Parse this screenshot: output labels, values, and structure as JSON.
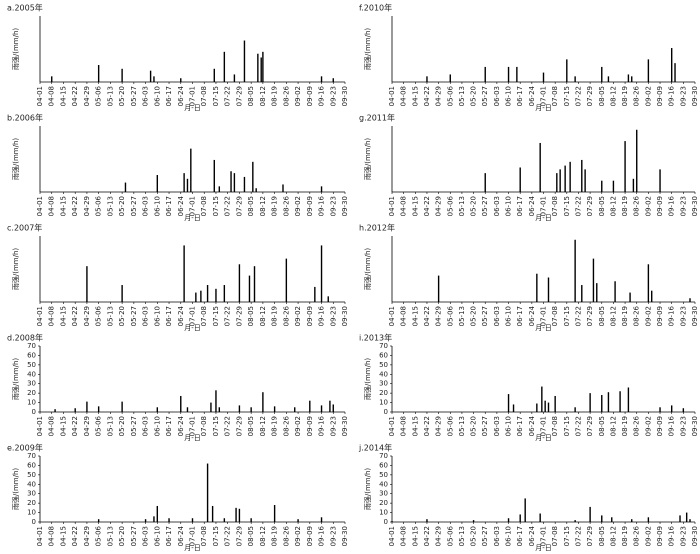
{
  "chart_data": [
    {
      "type": "bar",
      "title": "a.2005年",
      "xlabel": "月-日",
      "ylabel": "雨强/(mm/h)",
      "color": "#000000",
      "ylim": [
        0,
        35
      ],
      "xticks": [
        "04-01",
        "04-08",
        "04-15",
        "04-22",
        "04-29",
        "05-06",
        "05-13",
        "05-20",
        "05-27",
        "06-03",
        "06-10",
        "06-17",
        "06-24",
        "07-01",
        "07-08",
        "07-15",
        "07-22",
        "07-29",
        "08-05",
        "08-12",
        "08-19",
        "08-26",
        "09-02",
        "09-09",
        "09-16",
        "09-23",
        "09-30"
      ],
      "x": [
        "04-08",
        "05-06",
        "05-20",
        "06-06",
        "06-08",
        "06-24",
        "07-14",
        "07-20",
        "07-26",
        "08-01",
        "08-09",
        "08-11",
        "08-12",
        "09-16",
        "09-23"
      ],
      "values": [
        3,
        9,
        7,
        6,
        3,
        2,
        7,
        16,
        4,
        22,
        15,
        13,
        16,
        3,
        2
      ]
    },
    {
      "type": "bar",
      "title": "b.2006年",
      "xlabel": "月-日",
      "ylabel": "雨强/(mm/h)",
      "color": "#000000",
      "ylim": [
        0,
        35
      ],
      "xticks": [
        "04-01",
        "04-08",
        "04-15",
        "04-22",
        "04-29",
        "05-06",
        "05-13",
        "05-20",
        "05-27",
        "06-03",
        "06-10",
        "06-17",
        "06-24",
        "07-01",
        "07-08",
        "07-15",
        "07-22",
        "07-29",
        "08-05",
        "08-12",
        "08-19",
        "08-26",
        "09-02",
        "09-09",
        "09-16",
        "09-23",
        "09-30"
      ],
      "x": [
        "05-22",
        "06-10",
        "06-26",
        "06-28",
        "06-30",
        "07-14",
        "07-17",
        "07-24",
        "07-26",
        "08-01",
        "08-06",
        "08-08",
        "08-24",
        "09-16"
      ],
      "values": [
        5,
        9,
        10,
        7,
        23,
        17,
        3,
        11,
        10,
        8,
        16,
        2,
        4,
        3
      ]
    },
    {
      "type": "bar",
      "title": "c.2007年",
      "xlabel": "月-日",
      "ylabel": "雨强/(mm/h)",
      "color": "#000000",
      "ylim": [
        0,
        35
      ],
      "xticks": [
        "04-01",
        "04-08",
        "04-15",
        "04-22",
        "04-29",
        "05-06",
        "05-13",
        "05-20",
        "05-27",
        "06-03",
        "06-10",
        "06-17",
        "06-24",
        "07-01",
        "07-08",
        "07-15",
        "07-22",
        "07-29",
        "08-05",
        "08-12",
        "08-19",
        "08-26",
        "09-02",
        "09-09",
        "09-16",
        "09-23",
        "09-30"
      ],
      "x": [
        "04-29",
        "05-20",
        "06-26",
        "07-03",
        "07-06",
        "07-10",
        "07-15",
        "07-20",
        "07-29",
        "08-04",
        "08-07",
        "08-26",
        "09-12",
        "09-16",
        "09-20"
      ],
      "values": [
        19,
        9,
        30,
        5,
        6,
        9,
        7,
        9,
        20,
        14,
        19,
        23,
        8,
        30,
        3
      ]
    },
    {
      "type": "bar",
      "title": "d.2008年",
      "xlabel": "月-日",
      "ylabel": "雨强/(mm/h)",
      "color": "#000000",
      "ylim": [
        0,
        70
      ],
      "yticks": [
        0,
        10,
        20,
        30,
        40,
        50,
        60,
        70
      ],
      "xticks": [
        "04-01",
        "04-08",
        "04-15",
        "04-22",
        "04-29",
        "05-06",
        "05-13",
        "05-20",
        "05-27",
        "06-03",
        "06-10",
        "06-17",
        "06-24",
        "07-01",
        "07-08",
        "07-15",
        "07-22",
        "07-29",
        "08-05",
        "08-12",
        "08-19",
        "08-26",
        "09-02",
        "09-09",
        "09-16",
        "09-23",
        "09-30"
      ],
      "x": [
        "04-10",
        "04-22",
        "04-29",
        "05-06",
        "05-20",
        "06-10",
        "06-24",
        "06-28",
        "07-12",
        "07-15",
        "07-17",
        "07-29",
        "08-05",
        "08-12",
        "08-19",
        "08-31",
        "09-09",
        "09-16",
        "09-21",
        "09-23"
      ],
      "values": [
        3,
        4,
        11,
        6,
        11,
        5,
        17,
        5,
        10,
        23,
        5,
        7,
        5,
        21,
        6,
        5,
        12,
        7,
        12,
        8
      ]
    },
    {
      "type": "bar",
      "title": "e.2009年",
      "xlabel": "月-日",
      "ylabel": "雨强/(mm/h)",
      "color": "#000000",
      "ylim": [
        0,
        70
      ],
      "yticks": [
        0,
        10,
        20,
        30,
        40,
        50,
        60,
        70
      ],
      "xticks": [
        "04-01",
        "04-08",
        "04-15",
        "04-22",
        "04-29",
        "05-06",
        "05-13",
        "05-20",
        "05-27",
        "06-03",
        "06-10",
        "06-17",
        "06-24",
        "07-01",
        "07-08",
        "07-15",
        "07-22",
        "07-29",
        "08-05",
        "08-12",
        "08-19",
        "08-26",
        "09-02",
        "09-09",
        "09-16",
        "09-23",
        "09-30"
      ],
      "x": [
        "05-06",
        "06-03",
        "06-08",
        "06-10",
        "06-17",
        "07-01",
        "07-10",
        "07-13",
        "07-20",
        "07-27",
        "07-29",
        "08-05",
        "08-19",
        "09-02",
        "09-16"
      ],
      "values": [
        3,
        3,
        6,
        17,
        4,
        4,
        62,
        17,
        4,
        15,
        14,
        4,
        18,
        3,
        5
      ]
    },
    {
      "type": "bar",
      "title": "f.2010年",
      "xlabel": "月-日",
      "ylabel": "雨强/(mm/h)",
      "color": "#000000",
      "ylim": [
        0,
        35
      ],
      "xticks": [
        "04-01",
        "04-08",
        "04-15",
        "04-22",
        "04-29",
        "05-06",
        "05-13",
        "05-20",
        "05-27",
        "06-03",
        "06-10",
        "06-17",
        "06-24",
        "07-01",
        "07-08",
        "07-15",
        "07-22",
        "07-29",
        "08-05",
        "08-12",
        "08-19",
        "08-26",
        "09-02",
        "09-09",
        "09-16",
        "09-23",
        "09-30"
      ],
      "x": [
        "04-22",
        "05-06",
        "05-27",
        "06-10",
        "06-15",
        "07-01",
        "07-15",
        "07-20",
        "08-05",
        "08-09",
        "08-21",
        "08-23",
        "09-02",
        "09-16",
        "09-18"
      ],
      "values": [
        3,
        4,
        8,
        8,
        8,
        5,
        12,
        3,
        8,
        3,
        4,
        3,
        12,
        18,
        10
      ]
    },
    {
      "type": "bar",
      "title": "g.2011年",
      "xlabel": "月-日",
      "ylabel": "雨强/(mm/h)",
      "color": "#000000",
      "ylim": [
        0,
        35
      ],
      "xticks": [
        "04-01",
        "04-08",
        "04-15",
        "04-22",
        "04-29",
        "05-06",
        "05-13",
        "05-20",
        "05-27",
        "06-03",
        "06-10",
        "06-17",
        "06-24",
        "07-01",
        "07-08",
        "07-15",
        "07-22",
        "07-29",
        "08-05",
        "08-12",
        "08-19",
        "08-26",
        "09-02",
        "09-09",
        "09-16",
        "09-23",
        "09-30"
      ],
      "x": [
        "05-27",
        "06-17",
        "06-29",
        "07-09",
        "07-11",
        "07-14",
        "07-17",
        "07-24",
        "07-26",
        "08-05",
        "08-12",
        "08-19",
        "08-24",
        "08-26",
        "09-09"
      ],
      "values": [
        10,
        13,
        26,
        10,
        12,
        14,
        16,
        17,
        12,
        6,
        6,
        27,
        7,
        33,
        12
      ]
    },
    {
      "type": "bar",
      "title": "h.2012年",
      "xlabel": "月-日",
      "ylabel": "雨强/(mm/h)",
      "color": "#000000",
      "ylim": [
        0,
        35
      ],
      "xticks": [
        "04-01",
        "04-08",
        "04-15",
        "04-22",
        "04-29",
        "05-06",
        "05-13",
        "05-20",
        "05-27",
        "06-03",
        "06-10",
        "06-17",
        "06-24",
        "07-01",
        "07-08",
        "07-15",
        "07-22",
        "07-29",
        "08-05",
        "08-12",
        "08-19",
        "08-26",
        "09-02",
        "09-09",
        "09-16",
        "09-23",
        "09-30"
      ],
      "x": [
        "04-29",
        "06-27",
        "07-04",
        "07-20",
        "07-24",
        "07-31",
        "08-02",
        "08-13",
        "08-22",
        "09-02",
        "09-04",
        "09-27"
      ],
      "values": [
        14,
        15,
        13,
        33,
        9,
        23,
        10,
        11,
        5,
        20,
        6,
        2
      ]
    },
    {
      "type": "bar",
      "title": "i.2013年",
      "xlabel": "月-日",
      "ylabel": "雨强/(mm/h)",
      "color": "#000000",
      "ylim": [
        0,
        70
      ],
      "yticks": [
        0,
        10,
        20,
        30,
        40,
        50,
        60,
        70
      ],
      "xticks": [
        "04-01",
        "04-08",
        "04-15",
        "04-22",
        "04-29",
        "05-06",
        "05-13",
        "05-20",
        "05-27",
        "06-03",
        "06-10",
        "06-17",
        "06-24",
        "07-01",
        "07-08",
        "07-15",
        "07-22",
        "07-29",
        "08-05",
        "08-12",
        "08-19",
        "08-26",
        "09-02",
        "09-09",
        "09-16",
        "09-23",
        "09-30"
      ],
      "x": [
        "06-10",
        "06-13",
        "06-27",
        "06-30",
        "07-02",
        "07-04",
        "07-08",
        "07-20",
        "07-29",
        "08-05",
        "08-09",
        "08-16",
        "08-21",
        "09-09",
        "09-16",
        "09-23"
      ],
      "values": [
        19,
        8,
        9,
        27,
        12,
        10,
        17,
        5,
        20,
        18,
        21,
        22,
        26,
        5,
        7,
        4
      ]
    },
    {
      "type": "bar",
      "title": "j.2014年",
      "xlabel": "月-日",
      "ylabel": "雨强/(mm/h)",
      "color": "#000000",
      "ylim": [
        0,
        70
      ],
      "yticks": [
        0,
        10,
        20,
        30,
        40,
        50,
        60,
        70
      ],
      "xticks": [
        "04-01",
        "04-08",
        "04-15",
        "04-22",
        "04-29",
        "05-06",
        "05-13",
        "05-20",
        "05-27",
        "06-03",
        "06-10",
        "06-17",
        "06-24",
        "07-01",
        "07-08",
        "07-15",
        "07-22",
        "07-29",
        "08-05",
        "08-12",
        "08-19",
        "08-26",
        "09-02",
        "09-09",
        "09-16",
        "09-23",
        "09-30"
      ],
      "x": [
        "04-01",
        "04-22",
        "05-20",
        "06-10",
        "06-17",
        "06-20",
        "06-29",
        "07-20",
        "07-29",
        "08-05",
        "08-11",
        "08-23",
        "09-02",
        "09-21",
        "09-25",
        "09-27"
      ],
      "values": [
        1,
        3,
        2,
        4,
        8,
        25,
        9,
        2,
        16,
        7,
        5,
        3,
        5,
        7,
        10,
        3
      ]
    }
  ]
}
